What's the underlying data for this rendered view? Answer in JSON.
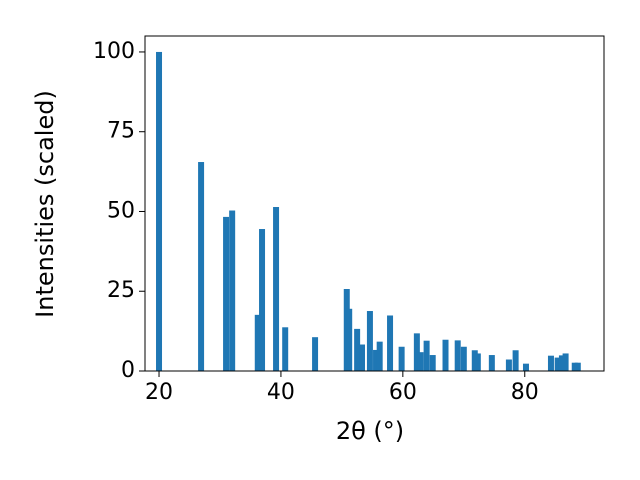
{
  "chart_data": {
    "type": "bar",
    "xlabel": "2θ (°)",
    "ylabel": "Intensities (scaled)",
    "x": [
      20.0,
      26.9,
      31.0,
      32.0,
      36.2,
      36.9,
      39.2,
      40.7,
      45.6,
      50.8,
      51.2,
      52.5,
      53.3,
      54.6,
      55.6,
      56.2,
      57.9,
      59.8,
      62.3,
      62.9,
      63.9,
      64.9,
      67.0,
      69.0,
      70.0,
      71.8,
      72.3,
      74.6,
      77.4,
      78.5,
      80.2,
      84.3,
      85.4,
      86.1,
      86.7,
      88.2,
      88.7
    ],
    "values": [
      100,
      65.5,
      48.3,
      50.3,
      17.6,
      44.5,
      51.4,
      13.7,
      10.6,
      25.7,
      19.5,
      13.2,
      8.3,
      18.8,
      6.6,
      9.2,
      17.4,
      7.6,
      11.8,
      5.9,
      9.5,
      5.0,
      9.8,
      9.6,
      7.6,
      6.5,
      5.5,
      5.0,
      3.6,
      6.5,
      2.3,
      4.8,
      4.2,
      4.9,
      5.5,
      2.6,
      2.6
    ],
    "color": "#1f77b4",
    "xlim": [
      17.7,
      93.0
    ],
    "ylim": [
      0,
      105
    ],
    "xticks": [
      20,
      40,
      60,
      80
    ],
    "yticks": [
      0,
      25,
      50,
      75,
      100
    ],
    "grid": false
  }
}
